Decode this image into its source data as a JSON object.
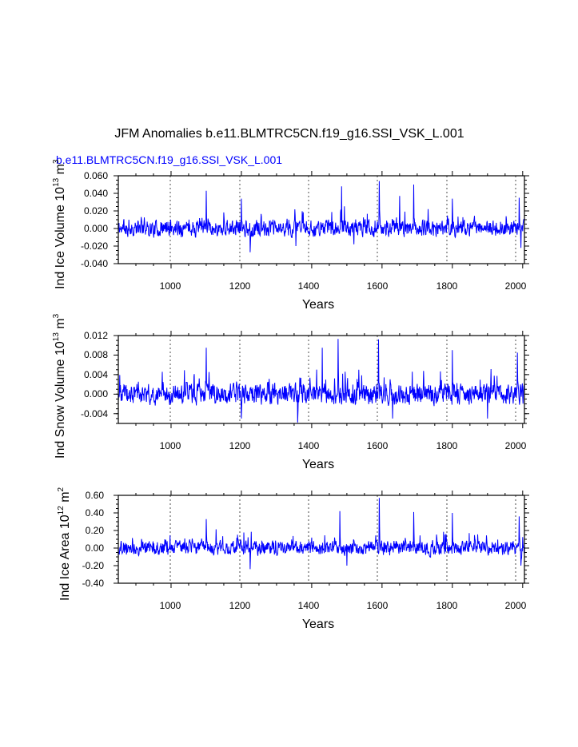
{
  "figure": {
    "title": "JFM Anomalies b.e11.BLMTRC5CN.f19_g16.SSI_VSK_L.001",
    "subtitle": "b.e11.BLMTRC5CN.f19_g16.SSI_VSK_L.001",
    "colors": {
      "series": "#0000ff",
      "text": "#000000",
      "subtitle": "#0000ff",
      "grid": "#000000"
    }
  },
  "chart_data": [
    {
      "type": "line",
      "ylabel_main": "Ind Ice Volume 10",
      "ylabel_exp": "13",
      "ylabel_unit": "m",
      "ylabel_unit_exp": "3",
      "xlabel": "Years",
      "xlim": [
        850,
        2005
      ],
      "ylim": [
        -0.04,
        0.06
      ],
      "x_ticks": [
        1000,
        1200,
        1400,
        1600,
        1800,
        2000
      ],
      "x_tick_labels": [
        "1000",
        "1200",
        "1400",
        "1600",
        "1800",
        "2000"
      ],
      "y_ticks": [
        -0.04,
        -0.02,
        0.0,
        0.02,
        0.04,
        0.06
      ],
      "y_tick_labels": [
        "-0.040",
        "-0.020",
        "0.000",
        "0.020",
        "0.040",
        "0.060"
      ],
      "vertical_gridlines": [
        1000,
        1200,
        1400,
        1600,
        1800,
        2000
      ],
      "noise_amplitude": 0.008,
      "peaks": [
        [
          1100,
          0.043
        ],
        [
          1200,
          0.034
        ],
        [
          1485,
          0.048
        ],
        [
          1592,
          0.054
        ],
        [
          1650,
          0.037
        ],
        [
          1690,
          0.05
        ],
        [
          1800,
          0.034
        ],
        [
          1990,
          0.035
        ]
      ],
      "troughs": [
        [
          1225,
          -0.027
        ],
        [
          1355,
          -0.02
        ],
        [
          1520,
          -0.018
        ],
        [
          1995,
          -0.022
        ]
      ],
      "seed": 11
    },
    {
      "type": "line",
      "ylabel_main": "Ind Snow Volume 10",
      "ylabel_exp": "13",
      "ylabel_unit": "m",
      "ylabel_unit_exp": "3",
      "xlabel": "Years",
      "xlim": [
        850,
        2005
      ],
      "ylim": [
        -0.006,
        0.012
      ],
      "x_ticks": [
        1000,
        1200,
        1400,
        1600,
        1800,
        2000
      ],
      "x_tick_labels": [
        "1000",
        "1200",
        "1400",
        "1600",
        "1800",
        "2000"
      ],
      "y_ticks": [
        -0.004,
        0.0,
        0.004,
        0.008,
        0.012
      ],
      "y_tick_labels": [
        "-0.004",
        "0.000",
        "0.004",
        "0.008",
        "0.012"
      ],
      "vertical_gridlines": [
        1000,
        1200,
        1400,
        1600,
        1800,
        2000
      ],
      "noise_amplitude": 0.0018,
      "peaks": [
        [
          1100,
          0.0095
        ],
        [
          1430,
          0.0095
        ],
        [
          1475,
          0.0113
        ],
        [
          1590,
          0.0112
        ],
        [
          1800,
          0.009
        ],
        [
          1985,
          0.0085
        ]
      ],
      "troughs": [
        [
          1360,
          -0.0058
        ],
        [
          1200,
          -0.005
        ],
        [
          1630,
          -0.005
        ],
        [
          1900,
          -0.005
        ]
      ],
      "seed": 23
    },
    {
      "type": "line",
      "ylabel_main": "Ind Ice Area 10",
      "ylabel_exp": "12",
      "ylabel_unit": "m",
      "ylabel_unit_exp": "2",
      "xlabel": "Years",
      "xlim": [
        850,
        2005
      ],
      "ylim": [
        -0.4,
        0.6
      ],
      "x_ticks": [
        1000,
        1200,
        1400,
        1600,
        1800,
        2000
      ],
      "x_tick_labels": [
        "1000",
        "1200",
        "1400",
        "1600",
        "1800",
        "2000"
      ],
      "y_ticks": [
        -0.4,
        -0.2,
        0.0,
        0.2,
        0.4,
        0.6
      ],
      "y_tick_labels": [
        "-0.40",
        "-0.20",
        "0.00",
        "0.20",
        "0.40",
        "0.60"
      ],
      "vertical_gridlines": [
        1000,
        1200,
        1400,
        1600,
        1800,
        2000
      ],
      "noise_amplitude": 0.07,
      "peaks": [
        [
          1100,
          0.33
        ],
        [
          1480,
          0.42
        ],
        [
          1592,
          0.57
        ],
        [
          1690,
          0.41
        ],
        [
          1800,
          0.4
        ],
        [
          1990,
          0.36
        ]
      ],
      "troughs": [
        [
          1225,
          -0.24
        ],
        [
          1500,
          -0.2
        ],
        [
          1995,
          -0.2
        ]
      ],
      "seed": 37
    }
  ]
}
